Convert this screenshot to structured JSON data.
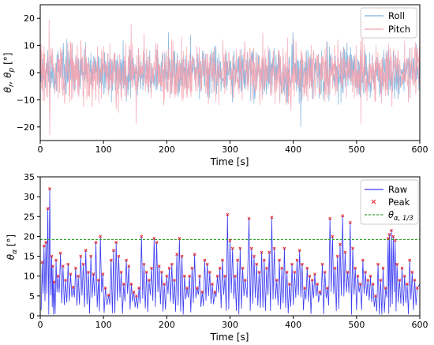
{
  "chart_data": [
    {
      "type": "line",
      "xlabel": "Time [s]",
      "ylabel": "θr, θp [°]",
      "xlim": [
        0,
        600
      ],
      "ylim": [
        -25,
        25
      ],
      "xticks": [
        0,
        100,
        200,
        300,
        400,
        500,
        600
      ],
      "yticks": [
        -20,
        -10,
        0,
        10,
        20
      ],
      "grid": false,
      "legend_position": "top-right",
      "series": [
        {
          "name": "Roll",
          "color": "#7fb2dd",
          "generator": "noise",
          "seed": 11,
          "amplitude": 6.0
        },
        {
          "name": "Pitch",
          "color": "#f3a1ae",
          "generator": "noise",
          "seed": 29,
          "amplitude": 7.5
        }
      ],
      "extremes": [
        {
          "series": "Pitch",
          "x": 14,
          "y": 19.5
        },
        {
          "series": "Pitch",
          "x": 15,
          "y": -23
        },
        {
          "series": "Roll",
          "x": 412,
          "y": -20
        }
      ]
    },
    {
      "type": "line",
      "xlabel": "Time [s]",
      "ylabel": "θα [°]",
      "xlim": [
        0,
        600
      ],
      "ylim": [
        0,
        35
      ],
      "xticks": [
        0,
        100,
        200,
        300,
        400,
        500,
        600
      ],
      "yticks": [
        0,
        5,
        10,
        15,
        20,
        25,
        30,
        35
      ],
      "grid": false,
      "legend_position": "top-right",
      "series": [
        {
          "name": "Raw",
          "color": "#3b3bf0",
          "style": "solid"
        },
        {
          "name": "Peak",
          "color": "#e41a1c",
          "style": "x-marker"
        },
        {
          "name": "θα,1/3",
          "color": "#2ca02c",
          "style": "dashed",
          "value": 19.2
        }
      ],
      "peaks": [
        [
          3,
          13.5
        ],
        [
          6,
          17.6
        ],
        [
          9,
          18.5
        ],
        [
          12,
          27
        ],
        [
          15,
          32
        ],
        [
          18,
          15
        ],
        [
          20,
          12.5
        ],
        [
          22,
          8.5
        ],
        [
          25,
          14
        ],
        [
          28,
          10
        ],
        [
          32,
          15.8
        ],
        [
          36,
          12.5
        ],
        [
          40,
          9
        ],
        [
          44,
          13
        ],
        [
          48,
          10.5
        ],
        [
          52,
          7.2
        ],
        [
          56,
          12
        ],
        [
          60,
          10
        ],
        [
          64,
          15
        ],
        [
          68,
          13
        ],
        [
          72,
          16.5
        ],
        [
          76,
          11
        ],
        [
          80,
          15
        ],
        [
          84,
          10.5
        ],
        [
          88,
          18.5
        ],
        [
          92,
          9
        ],
        [
          95,
          20
        ],
        [
          99,
          10.5
        ],
        [
          103,
          7
        ],
        [
          108,
          5.2
        ],
        [
          112,
          14
        ],
        [
          116,
          16.5
        ],
        [
          120,
          18.5
        ],
        [
          124,
          15
        ],
        [
          128,
          11
        ],
        [
          132,
          8
        ],
        [
          136,
          14
        ],
        [
          140,
          12.5
        ],
        [
          144,
          8
        ],
        [
          148,
          6
        ],
        [
          152,
          5
        ],
        [
          156,
          7
        ],
        [
          160,
          20
        ],
        [
          164,
          13
        ],
        [
          168,
          11
        ],
        [
          172,
          9
        ],
        [
          176,
          12
        ],
        [
          180,
          19.5
        ],
        [
          184,
          18.5
        ],
        [
          188,
          12.5
        ],
        [
          192,
          11
        ],
        [
          196,
          8
        ],
        [
          200,
          10
        ],
        [
          204,
          12
        ],
        [
          208,
          13
        ],
        [
          212,
          9
        ],
        [
          216,
          15.5
        ],
        [
          220,
          19.5
        ],
        [
          224,
          15
        ],
        [
          228,
          10
        ],
        [
          232,
          7
        ],
        [
          236,
          10
        ],
        [
          240,
          12
        ],
        [
          244,
          15.5
        ],
        [
          248,
          7
        ],
        [
          252,
          10
        ],
        [
          256,
          6
        ],
        [
          260,
          14
        ],
        [
          264,
          13
        ],
        [
          268,
          11
        ],
        [
          272,
          8
        ],
        [
          276,
          6
        ],
        [
          280,
          10
        ],
        [
          284,
          12
        ],
        [
          288,
          14
        ],
        [
          292,
          10
        ],
        [
          296,
          25.5
        ],
        [
          300,
          19
        ],
        [
          304,
          17
        ],
        [
          308,
          10
        ],
        [
          312,
          14
        ],
        [
          316,
          17
        ],
        [
          320,
          12
        ],
        [
          324,
          9
        ],
        [
          330,
          24.5
        ],
        [
          334,
          17
        ],
        [
          338,
          15
        ],
        [
          342,
          13
        ],
        [
          346,
          11
        ],
        [
          350,
          16
        ],
        [
          354,
          14
        ],
        [
          358,
          12
        ],
        [
          362,
          16
        ],
        [
          366,
          24.8
        ],
        [
          370,
          17
        ],
        [
          374,
          9
        ],
        [
          378,
          14
        ],
        [
          382,
          12
        ],
        [
          386,
          17
        ],
        [
          390,
          11
        ],
        [
          394,
          8
        ],
        [
          398,
          13
        ],
        [
          402,
          11
        ],
        [
          406,
          14
        ],
        [
          410,
          16.5
        ],
        [
          414,
          13
        ],
        [
          418,
          7
        ],
        [
          422,
          12
        ],
        [
          426,
          10
        ],
        [
          430,
          9
        ],
        [
          434,
          10.5
        ],
        [
          438,
          8
        ],
        [
          442,
          6
        ],
        [
          446,
          13
        ],
        [
          450,
          11
        ],
        [
          454,
          7
        ],
        [
          458,
          24.5
        ],
        [
          462,
          20
        ],
        [
          466,
          12
        ],
        [
          470,
          15
        ],
        [
          474,
          18
        ],
        [
          478,
          25.2
        ],
        [
          482,
          16
        ],
        [
          486,
          11
        ],
        [
          490,
          23.5
        ],
        [
          494,
          17
        ],
        [
          498,
          12
        ],
        [
          502,
          10
        ],
        [
          506,
          8
        ],
        [
          510,
          14
        ],
        [
          514,
          11
        ],
        [
          518,
          9
        ],
        [
          522,
          10
        ],
        [
          526,
          8
        ],
        [
          530,
          5
        ],
        [
          534,
          13
        ],
        [
          538,
          9
        ],
        [
          542,
          12
        ],
        [
          546,
          7
        ],
        [
          550,
          19.5
        ],
        [
          552,
          20.5
        ],
        [
          555,
          21.5
        ],
        [
          558,
          20
        ],
        [
          561,
          19
        ],
        [
          564,
          13
        ],
        [
          568,
          9
        ],
        [
          572,
          12
        ],
        [
          576,
          10
        ],
        [
          580,
          8
        ],
        [
          584,
          14
        ],
        [
          588,
          11
        ],
        [
          592,
          9
        ],
        [
          596,
          7
        ]
      ]
    }
  ]
}
